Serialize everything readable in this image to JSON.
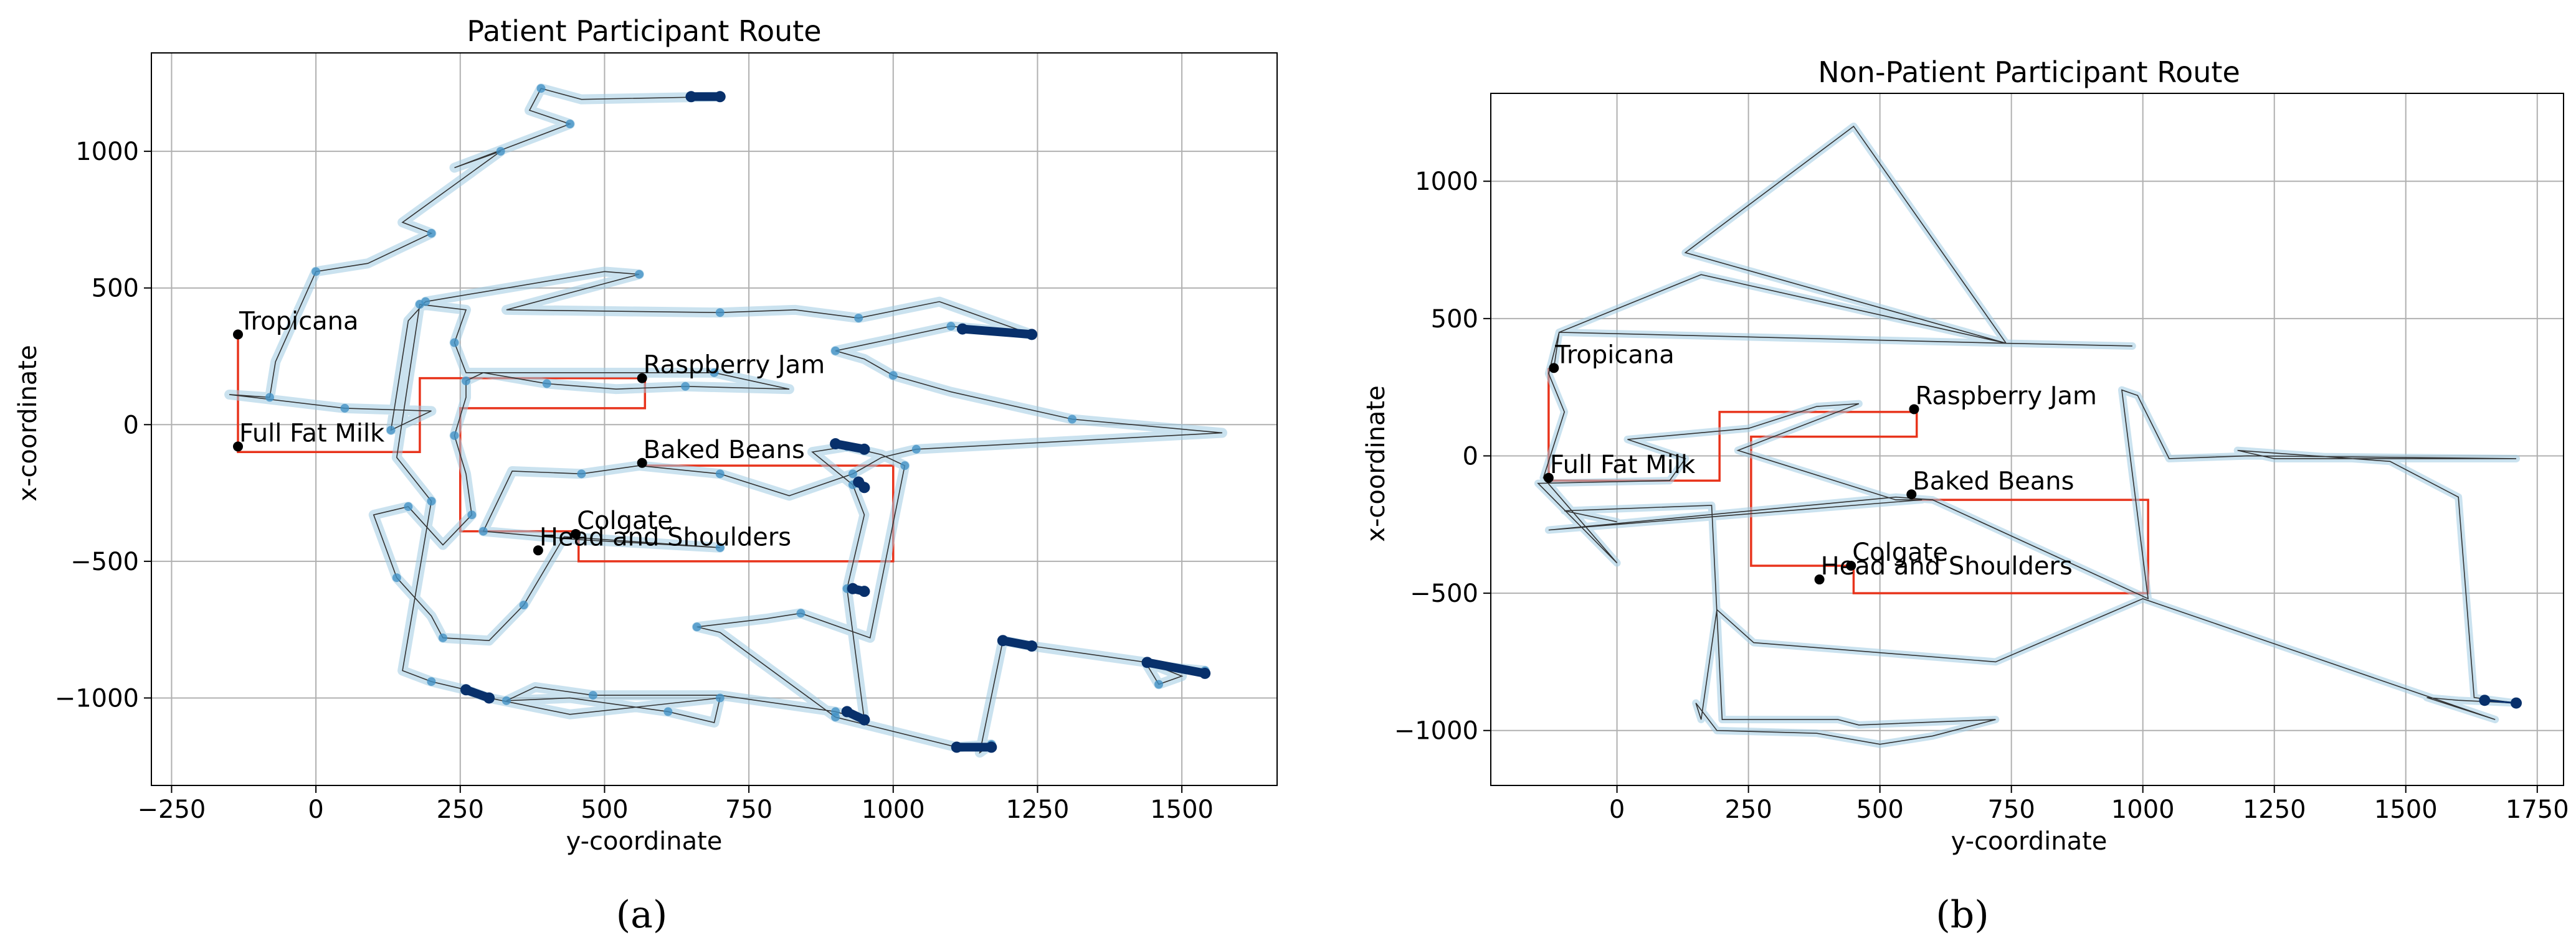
{
  "chart_data": [
    {
      "type": "scatter",
      "title": "Patient Participant Route",
      "xlabel": "y-coordinate",
      "ylabel": "x-coordinate",
      "xlim": [
        -285,
        1665
      ],
      "ylim": [
        -1320,
        1360
      ],
      "xticks": [
        -250,
        0,
        250,
        500,
        750,
        1000,
        1250,
        1500
      ],
      "xtick_labels": [
        "−250",
        "0",
        "250",
        "500",
        "750",
        "1000",
        "1250",
        "1500"
      ],
      "yticks": [
        -1000,
        -500,
        0,
        500,
        1000
      ],
      "ytick_labels": [
        "−1000",
        "−500",
        "0",
        "500",
        "1000"
      ],
      "grid": true,
      "caption": "(a)",
      "products": [
        {
          "name": "Tropicana",
          "x": -135,
          "y": 330
        },
        {
          "name": "Raspberry Jam",
          "x": 565,
          "y": 170
        },
        {
          "name": "Full Fat Milk",
          "x": -135,
          "y": -80
        },
        {
          "name": "Baked Beans",
          "x": 565,
          "y": -140
        },
        {
          "name": "Colgate",
          "x": 450,
          "y": -400
        },
        {
          "name": "Head and Shoulders",
          "x": 385,
          "y": -460
        }
      ],
      "optimal_route": [
        [
          -135,
          330
        ],
        [
          -135,
          -100
        ],
        [
          180,
          -100
        ],
        [
          180,
          170
        ],
        [
          570,
          170
        ],
        [
          570,
          60
        ],
        [
          250,
          60
        ],
        [
          250,
          -390
        ],
        [
          455,
          -390
        ],
        [
          455,
          -500
        ],
        [
          1000,
          -500
        ],
        [
          1000,
          -150
        ],
        [
          565,
          -150
        ]
      ],
      "route": [
        [
          700,
          1200
        ],
        [
          460,
          1190
        ],
        [
          390,
          1230
        ],
        [
          370,
          1150
        ],
        [
          440,
          1100
        ],
        [
          240,
          940
        ],
        [
          320,
          1000
        ],
        [
          150,
          740
        ],
        [
          200,
          700
        ],
        [
          90,
          590
        ],
        [
          0,
          560
        ],
        [
          -70,
          230
        ],
        [
          -80,
          100
        ],
        [
          -150,
          110
        ],
        [
          50,
          60
        ],
        [
          200,
          50
        ],
        [
          130,
          -20
        ],
        [
          160,
          380
        ],
        [
          190,
          450
        ],
        [
          500,
          560
        ],
        [
          560,
          550
        ],
        [
          330,
          420
        ],
        [
          700,
          410
        ],
        [
          830,
          420
        ],
        [
          940,
          390
        ],
        [
          1080,
          450
        ],
        [
          1240,
          330
        ],
        [
          1200,
          340
        ],
        [
          1100,
          360
        ],
        [
          990,
          310
        ],
        [
          900,
          270
        ],
        [
          950,
          240
        ],
        [
          1000,
          180
        ],
        [
          1100,
          120
        ],
        [
          1310,
          20
        ],
        [
          1570,
          -30
        ],
        [
          1040,
          -90
        ],
        [
          980,
          -120
        ],
        [
          930,
          -180
        ],
        [
          820,
          -260
        ],
        [
          700,
          -180
        ],
        [
          560,
          -150
        ],
        [
          460,
          -180
        ],
        [
          340,
          -170
        ],
        [
          290,
          -390
        ],
        [
          450,
          -420
        ],
        [
          700,
          -450
        ],
        [
          430,
          -410
        ],
        [
          360,
          -660
        ],
        [
          300,
          -790
        ],
        [
          220,
          -780
        ],
        [
          200,
          -700
        ],
        [
          140,
          -560
        ],
        [
          100,
          -330
        ],
        [
          160,
          -300
        ],
        [
          220,
          -440
        ],
        [
          270,
          -330
        ],
        [
          260,
          -180
        ],
        [
          240,
          -40
        ],
        [
          260,
          100
        ],
        [
          260,
          160
        ],
        [
          290,
          190
        ],
        [
          400,
          150
        ],
        [
          520,
          130
        ],
        [
          640,
          140
        ],
        [
          820,
          130
        ],
        [
          690,
          190
        ],
        [
          260,
          190
        ],
        [
          240,
          300
        ],
        [
          260,
          420
        ],
        [
          180,
          440
        ],
        [
          140,
          -120
        ],
        [
          200,
          -280
        ],
        [
          150,
          -900
        ],
        [
          200,
          -940
        ],
        [
          260,
          -970
        ],
        [
          300,
          -1000
        ],
        [
          440,
          -1060
        ],
        [
          700,
          -1000
        ],
        [
          690,
          -1090
        ],
        [
          610,
          -1050
        ],
        [
          440,
          -1000
        ],
        [
          330,
          -1010
        ],
        [
          380,
          -960
        ],
        [
          480,
          -990
        ],
        [
          700,
          -990
        ],
        [
          900,
          -1050
        ],
        [
          950,
          -1080
        ],
        [
          920,
          -600
        ],
        [
          950,
          -330
        ],
        [
          930,
          -220
        ],
        [
          860,
          -100
        ],
        [
          920,
          -80
        ],
        [
          980,
          -110
        ],
        [
          1020,
          -150
        ],
        [
          960,
          -780
        ],
        [
          840,
          -690
        ],
        [
          780,
          -710
        ],
        [
          660,
          -740
        ],
        [
          700,
          -760
        ],
        [
          900,
          -1070
        ],
        [
          1110,
          -1180
        ],
        [
          1170,
          -1170
        ],
        [
          1150,
          -1200
        ],
        [
          1190,
          -790
        ],
        [
          1240,
          -810
        ],
        [
          1440,
          -870
        ],
        [
          1500,
          -920
        ],
        [
          1460,
          -950
        ],
        [
          1440,
          -880
        ],
        [
          1540,
          -900
        ]
      ],
      "dense_clusters": [
        [
          [
            650,
            1200
          ],
          [
            700,
            1200
          ]
        ],
        [
          [
            1120,
            350
          ],
          [
            1240,
            330
          ]
        ],
        [
          [
            1440,
            -870
          ],
          [
            1540,
            -910
          ]
        ],
        [
          [
            1190,
            -790
          ],
          [
            1240,
            -810
          ]
        ],
        [
          [
            260,
            -970
          ],
          [
            300,
            -1000
          ]
        ],
        [
          [
            920,
            -1050
          ],
          [
            950,
            -1080
          ]
        ],
        [
          [
            1110,
            -1180
          ],
          [
            1170,
            -1180
          ]
        ],
        [
          [
            940,
            -210
          ],
          [
            950,
            -230
          ]
        ],
        [
          [
            930,
            -600
          ],
          [
            950,
            -610
          ]
        ],
        [
          [
            900,
            -70
          ],
          [
            950,
            -90
          ]
        ]
      ]
    },
    {
      "type": "scatter",
      "title": "Non-Patient Participant Route",
      "xlabel": "y-coordinate",
      "ylabel": "x-coordinate",
      "xlim": [
        -240,
        1800
      ],
      "ylim": [
        -1200,
        1320
      ],
      "xticks": [
        0,
        250,
        500,
        750,
        1000,
        1250,
        1500,
        1750
      ],
      "xtick_labels": [
        "0",
        "250",
        "500",
        "750",
        "1000",
        "1250",
        "1500",
        "1750"
      ],
      "yticks": [
        -1000,
        -500,
        0,
        500,
        1000
      ],
      "ytick_labels": [
        "−1000",
        "−500",
        "0",
        "500",
        "1000"
      ],
      "grid": true,
      "caption": "(b)",
      "products": [
        {
          "name": "Tropicana",
          "x": -120,
          "y": 320
        },
        {
          "name": "Raspberry Jam",
          "x": 565,
          "y": 170
        },
        {
          "name": "Full Fat Milk",
          "x": -130,
          "y": -80
        },
        {
          "name": "Baked Beans",
          "x": 560,
          "y": -140
        },
        {
          "name": "Colgate",
          "x": 445,
          "y": -400
        },
        {
          "name": "Head and Shoulders",
          "x": 385,
          "y": -450
        }
      ],
      "optimal_route": [
        [
          -130,
          320
        ],
        [
          -130,
          -90
        ],
        [
          195,
          -90
        ],
        [
          195,
          160
        ],
        [
          570,
          160
        ],
        [
          570,
          70
        ],
        [
          255,
          70
        ],
        [
          255,
          -400
        ],
        [
          450,
          -400
        ],
        [
          450,
          -500
        ],
        [
          1010,
          -500
        ],
        [
          1010,
          -160
        ],
        [
          560,
          -160
        ]
      ],
      "route": [
        [
          -120,
          320
        ],
        [
          -110,
          450
        ],
        [
          740,
          410
        ],
        [
          130,
          740
        ],
        [
          450,
          1200
        ],
        [
          740,
          410
        ],
        [
          980,
          400
        ],
        [
          740,
          410
        ],
        [
          160,
          660
        ],
        [
          -110,
          450
        ],
        [
          -130,
          300
        ],
        [
          -100,
          160
        ],
        [
          -140,
          -80
        ],
        [
          0,
          -390
        ],
        [
          -150,
          -100
        ],
        [
          100,
          -90
        ],
        [
          130,
          -10
        ],
        [
          20,
          60
        ],
        [
          250,
          100
        ],
        [
          380,
          180
        ],
        [
          460,
          190
        ],
        [
          230,
          20
        ],
        [
          530,
          -160
        ],
        [
          580,
          -160
        ],
        [
          -130,
          -270
        ],
        [
          530,
          -150
        ],
        [
          600,
          -160
        ],
        [
          1010,
          -520
        ],
        [
          960,
          240
        ],
        [
          990,
          220
        ],
        [
          1050,
          -10
        ],
        [
          1200,
          0
        ],
        [
          1710,
          -10
        ],
        [
          1250,
          -10
        ],
        [
          1180,
          20
        ],
        [
          1470,
          -20
        ],
        [
          1600,
          -150
        ],
        [
          1630,
          -880
        ],
        [
          1710,
          -900
        ],
        [
          1600,
          -890
        ],
        [
          1540,
          -880
        ],
        [
          1670,
          -960
        ],
        [
          1000,
          -520
        ],
        [
          720,
          -750
        ],
        [
          260,
          -680
        ],
        [
          190,
          -560
        ],
        [
          160,
          -960
        ],
        [
          150,
          -900
        ],
        [
          190,
          -1000
        ],
        [
          380,
          -1010
        ],
        [
          500,
          -1050
        ],
        [
          600,
          -1020
        ],
        [
          720,
          -960
        ],
        [
          460,
          -980
        ],
        [
          420,
          -960
        ],
        [
          200,
          -960
        ],
        [
          180,
          -180
        ],
        [
          -100,
          -200
        ],
        [
          0,
          -240
        ]
      ],
      "dense_clusters": [
        [
          [
            1650,
            -890
          ],
          [
            1710,
            -900
          ]
        ]
      ]
    }
  ],
  "colors": {
    "light_route": "#9ecae1",
    "mid_route": "#4292c6",
    "dark_route": "#08306b",
    "path_line": "#333333",
    "optimal_route": "#e8341c",
    "product_marker": "#000000",
    "grid": "#b0b0b0"
  }
}
